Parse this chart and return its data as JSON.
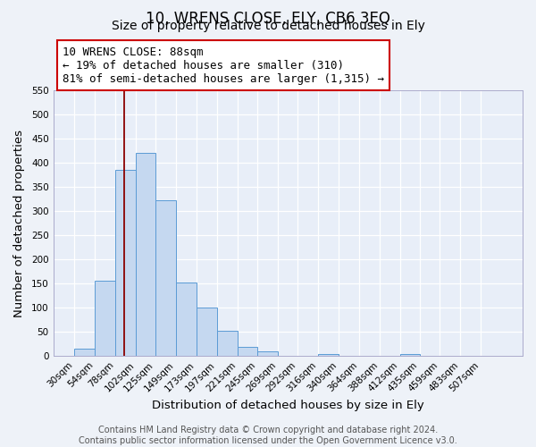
{
  "title": "10, WRENS CLOSE, ELY, CB6 3EQ",
  "subtitle": "Size of property relative to detached houses in Ely",
  "xlabel": "Distribution of detached houses by size in Ely",
  "ylabel": "Number of detached properties",
  "bin_labels": [
    "30sqm",
    "54sqm",
    "78sqm",
    "102sqm",
    "125sqm",
    "149sqm",
    "173sqm",
    "197sqm",
    "221sqm",
    "245sqm",
    "269sqm",
    "292sqm",
    "316sqm",
    "340sqm",
    "364sqm",
    "388sqm",
    "412sqm",
    "435sqm",
    "459sqm",
    "483sqm",
    "507sqm"
  ],
  "bar_values": [
    15,
    155,
    385,
    420,
    322,
    152,
    100,
    53,
    20,
    10,
    0,
    0,
    5,
    0,
    0,
    0,
    5,
    0,
    0,
    0,
    0
  ],
  "bin_edges": [
    30,
    54,
    78,
    102,
    125,
    149,
    173,
    197,
    221,
    245,
    269,
    292,
    316,
    340,
    364,
    388,
    412,
    435,
    459,
    483,
    507
  ],
  "bar_color": "#c5d8f0",
  "bar_edge_color": "#5b9bd5",
  "vline_x": 88,
  "vline_color": "#8b0000",
  "ylim": [
    0,
    550
  ],
  "yticks": [
    0,
    50,
    100,
    150,
    200,
    250,
    300,
    350,
    400,
    450,
    500,
    550
  ],
  "annotation_line1": "10 WRENS CLOSE: 88sqm",
  "annotation_line2": "← 19% of detached houses are smaller (310)",
  "annotation_line3": "81% of semi-detached houses are larger (1,315) →",
  "annotation_box_color": "#ffffff",
  "annotation_box_edge": "#cc0000",
  "footer_line1": "Contains HM Land Registry data © Crown copyright and database right 2024.",
  "footer_line2": "Contains public sector information licensed under the Open Government Licence v3.0.",
  "background_color": "#eef2f8",
  "plot_bg_color": "#e8eef8",
  "grid_color": "#ffffff",
  "title_fontsize": 12,
  "subtitle_fontsize": 10,
  "axis_label_fontsize": 9.5,
  "tick_fontsize": 7.5,
  "annotation_fontsize": 9,
  "footer_fontsize": 7
}
